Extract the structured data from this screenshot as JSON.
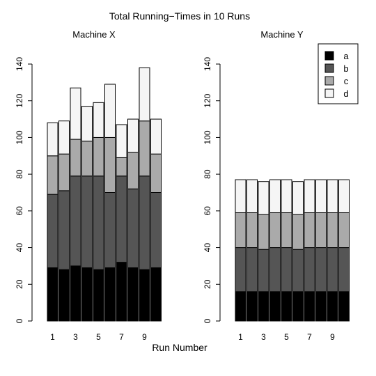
{
  "figure": {
    "title": "Total Running−Times in 10 Runs",
    "xlabel": "Run Number"
  },
  "legend": {
    "placement": "top-right",
    "entries": [
      {
        "label": "a",
        "color": "#000000"
      },
      {
        "label": "b",
        "color": "#555555"
      },
      {
        "label": "c",
        "color": "#aaaaaa"
      },
      {
        "label": "d",
        "color": "#f5f5f5"
      }
    ]
  },
  "chart_data": [
    {
      "type": "bar",
      "stacked": true,
      "title": "Machine X",
      "xlabel": "",
      "ylabel": "",
      "categories": [
        "1",
        "2",
        "3",
        "4",
        "5",
        "6",
        "7",
        "8",
        "9",
        "10"
      ],
      "x_tick_labels": [
        "1",
        "3",
        "5",
        "7",
        "9"
      ],
      "y_ticks": [
        0,
        20,
        40,
        60,
        80,
        100,
        120,
        140
      ],
      "ylim": [
        0,
        140
      ],
      "grid": false,
      "series": [
        {
          "name": "a",
          "color": "#000000",
          "values": [
            29,
            28,
            30,
            29,
            28,
            29,
            32,
            29,
            28,
            29
          ]
        },
        {
          "name": "b",
          "color": "#555555",
          "values": [
            40,
            43,
            49,
            50,
            51,
            41,
            47,
            43,
            51,
            41
          ]
        },
        {
          "name": "c",
          "color": "#aaaaaa",
          "values": [
            21,
            20,
            20,
            19,
            21,
            30,
            10,
            20,
            30,
            21
          ]
        },
        {
          "name": "d",
          "color": "#f5f5f5",
          "values": [
            18,
            18,
            28,
            19,
            19,
            29,
            18,
            18,
            29,
            19
          ]
        }
      ]
    },
    {
      "type": "bar",
      "stacked": true,
      "title": "Machine Y",
      "xlabel": "",
      "ylabel": "",
      "categories": [
        "1",
        "2",
        "3",
        "4",
        "5",
        "6",
        "7",
        "8",
        "9",
        "10"
      ],
      "x_tick_labels": [
        "1",
        "3",
        "5",
        "7",
        "9"
      ],
      "y_ticks": [
        0,
        20,
        40,
        60,
        80,
        100,
        120,
        140
      ],
      "ylim": [
        0,
        140
      ],
      "grid": false,
      "series": [
        {
          "name": "a",
          "color": "#000000",
          "values": [
            16,
            16,
            16,
            16,
            16,
            16,
            16,
            16,
            16,
            16
          ]
        },
        {
          "name": "b",
          "color": "#555555",
          "values": [
            24,
            24,
            23,
            24,
            24,
            23,
            24,
            24,
            24,
            24
          ]
        },
        {
          "name": "c",
          "color": "#aaaaaa",
          "values": [
            19,
            19,
            19,
            19,
            19,
            19,
            19,
            19,
            19,
            19
          ]
        },
        {
          "name": "d",
          "color": "#f5f5f5",
          "values": [
            18,
            18,
            18,
            18,
            18,
            18,
            18,
            18,
            18,
            18
          ]
        }
      ]
    }
  ]
}
